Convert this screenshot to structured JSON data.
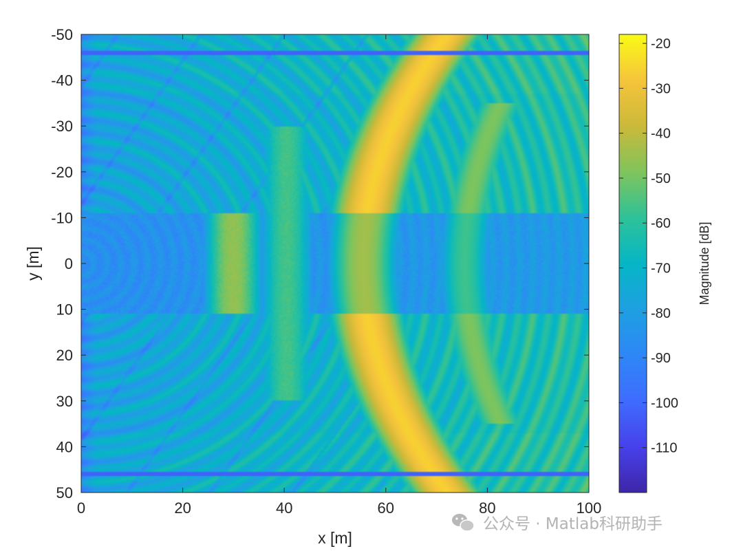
{
  "chart_data": {
    "type": "heatmap",
    "title": "",
    "xlabel": "x [m]",
    "ylabel": "y [m]",
    "xlim": [
      0,
      100
    ],
    "ylim": [
      -50,
      50
    ],
    "y_reversed": true,
    "xticks": [
      0,
      20,
      40,
      60,
      80,
      100
    ],
    "yticks": [
      -50,
      -40,
      -30,
      -20,
      -10,
      0,
      10,
      20,
      30,
      40,
      50
    ],
    "colormap": "parula",
    "colorbar": {
      "label": "Magnitude [dB]",
      "range": [
        -120,
        -18
      ],
      "ticks": [
        -20,
        -30,
        -40,
        -50,
        -60,
        -70,
        -80,
        -90,
        -100,
        -110
      ]
    },
    "features": {
      "strong_arc": {
        "x_at_center": 55.5,
        "x_at_edge": 72,
        "peak_db": -20
      },
      "secondary_arc": {
        "x_at_center": 75.5,
        "x_at_edge": 90,
        "peak_db": -45
      },
      "vertical_bands": [
        {
          "x": 30,
          "y_range": [
            -11,
            11
          ],
          "peak_db": -42
        },
        {
          "x": 40.5,
          "y_range": [
            -30,
            30
          ],
          "peak_db": -52
        }
      ],
      "low_band_y_range": [
        -11,
        11
      ],
      "step_lines_y": [
        -37,
        37
      ],
      "dark_lines_y": [
        -46,
        46
      ],
      "background_db_range": [
        -100,
        -60
      ]
    }
  },
  "watermark": {
    "text": "公众号 · Matlab科研助手"
  }
}
